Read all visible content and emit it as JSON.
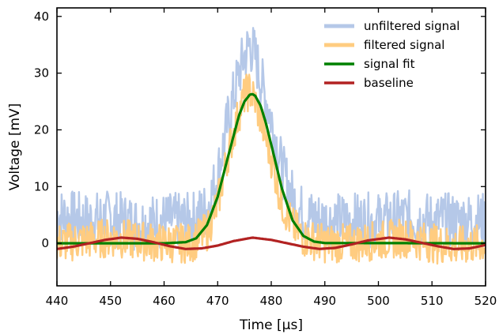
{
  "chart_data": {
    "type": "line",
    "xlabel": "Time [μs]",
    "ylabel": "Voltage [mV]",
    "xlim": [
      440,
      520
    ],
    "ylim": [
      -7.5,
      41.5
    ],
    "xticks": [
      440,
      450,
      460,
      470,
      480,
      490,
      500,
      510,
      520
    ],
    "yticks": [
      0,
      10,
      20,
      30,
      40
    ],
    "grid": false,
    "legend_position": "top-right",
    "series": [
      {
        "name": "unfiltered signal",
        "color": "#b5c8e8",
        "style": "noisy",
        "x": [
          440,
          445,
          450,
          455,
          460,
          465,
          468,
          470,
          472,
          474,
          475,
          476,
          477,
          478,
          480,
          482,
          484,
          486,
          490,
          495,
          500,
          505,
          510,
          515,
          520
        ],
        "values": [
          5,
          4,
          4.5,
          3.5,
          4,
          4,
          6,
          12,
          22,
          30,
          33,
          35,
          33,
          29,
          22,
          13,
          8,
          5,
          4,
          4,
          4,
          4.5,
          4,
          4,
          4
        ],
        "noise_amp": 5
      },
      {
        "name": "filtered signal",
        "color": "#ffcc80",
        "style": "noisy",
        "x": [
          440,
          445,
          450,
          455,
          460,
          465,
          468,
          470,
          472,
          474,
          475,
          476,
          477,
          478,
          480,
          482,
          484,
          486,
          490,
          495,
          500,
          505,
          510,
          515,
          520
        ],
        "values": [
          0,
          0.5,
          1,
          0.5,
          0,
          0,
          2,
          7,
          16,
          23,
          26,
          27,
          25,
          22,
          15,
          7,
          3,
          1,
          0,
          0,
          0.5,
          1,
          0,
          -0.5,
          0
        ],
        "noise_amp": 3.5
      },
      {
        "name": "signal fit",
        "color": "#008000",
        "style": "smooth",
        "x": [
          440,
          460,
          464,
          466,
          468,
          470,
          472,
          474,
          475,
          476,
          476.5,
          477,
          478,
          479,
          480,
          482,
          484,
          486,
          488,
          490,
          520
        ],
        "values": [
          0,
          0,
          0.2,
          0.9,
          3.2,
          8.2,
          15.5,
          22.6,
          25.0,
          26.2,
          26.3,
          26.0,
          24.3,
          21.2,
          17.4,
          9.6,
          4.0,
          1.3,
          0.3,
          0.05,
          0
        ]
      },
      {
        "name": "baseline",
        "color": "#b22222",
        "style": "smooth",
        "x": [
          440,
          443,
          446,
          449,
          452,
          455,
          458,
          461,
          464,
          467,
          470,
          473,
          476.5,
          480,
          483,
          486,
          489,
          492,
          495,
          498,
          502,
          505,
          508,
          511,
          514,
          517,
          520
        ],
        "values": [
          -1,
          -0.6,
          0,
          0.6,
          1,
          0.8,
          0.2,
          -0.5,
          -1,
          -0.9,
          -0.4,
          0.4,
          1,
          0.6,
          0,
          -0.6,
          -1,
          -0.8,
          -0.2,
          0.5,
          1,
          0.7,
          0.1,
          -0.5,
          -1,
          -0.9,
          -0.3
        ]
      }
    ]
  }
}
